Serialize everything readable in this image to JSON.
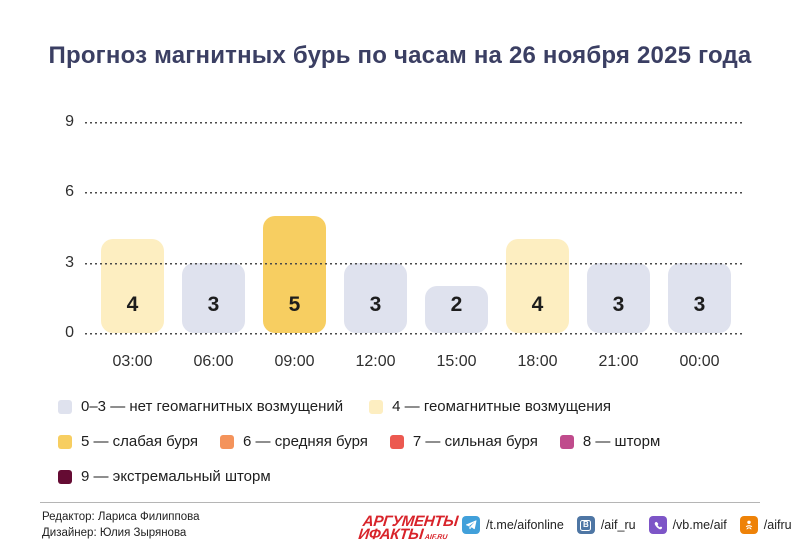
{
  "chart_data": {
    "type": "bar",
    "title": "Прогноз магнитных бурь по часам на 26 ноября 2025 года",
    "categories": [
      "03:00",
      "06:00",
      "09:00",
      "12:00",
      "15:00",
      "18:00",
      "21:00",
      "00:00"
    ],
    "values": [
      4,
      3,
      5,
      3,
      2,
      4,
      3,
      3
    ],
    "xlabel": "",
    "ylabel": "",
    "ylim": [
      0,
      9
    ],
    "yticks": [
      0,
      3,
      6,
      9
    ],
    "grid": "horizontal-dotted",
    "legend_position": "bottom",
    "level_colors": {
      "0-3": "#dfe2ee",
      "4": "#fdeec1",
      "5": "#f7ce61",
      "6": "#f4935b",
      "7": "#ec5950",
      "8": "#c04b8c",
      "9": "#650b33"
    },
    "title_color": "#3b3f63"
  },
  "legend": {
    "items": [
      {
        "label": "0–3 — нет геомагнитных возмущений",
        "color": "#dfe2ee"
      },
      {
        "label": "4 — геомагнитные возмущения",
        "color": "#fdeec1"
      },
      {
        "label": "5 — слабая буря",
        "color": "#f7ce61"
      },
      {
        "label": "6 — средняя буря",
        "color": "#f4935b"
      },
      {
        "label": "7 — сильная буря",
        "color": "#ec5950"
      },
      {
        "label": "8 — шторм",
        "color": "#c04b8c"
      },
      {
        "label": "9 — экстремальный шторм",
        "color": "#650b33"
      }
    ]
  },
  "footer": {
    "editor": "Редактор: Лариса Филиппова",
    "designer": "Дизайнер: Юлия Зырянова",
    "logo": {
      "line1": "АРГУМЕНТЫ",
      "line2": "ИФАКТЫ",
      "suffix": "AIF.RU",
      "color": "#d8232a"
    },
    "socials": [
      {
        "icon": "telegram-icon",
        "handle": "/t.me/aifonline",
        "color": "#41a0da"
      },
      {
        "icon": "vk-icon",
        "handle": "/aif_ru",
        "color": "#4e76a4"
      },
      {
        "icon": "viber-icon",
        "handle": "/vb.me/aif",
        "color": "#7d55c7"
      },
      {
        "icon": "ok-icon",
        "handle": "/aifru",
        "color": "#ee8208"
      }
    ]
  }
}
